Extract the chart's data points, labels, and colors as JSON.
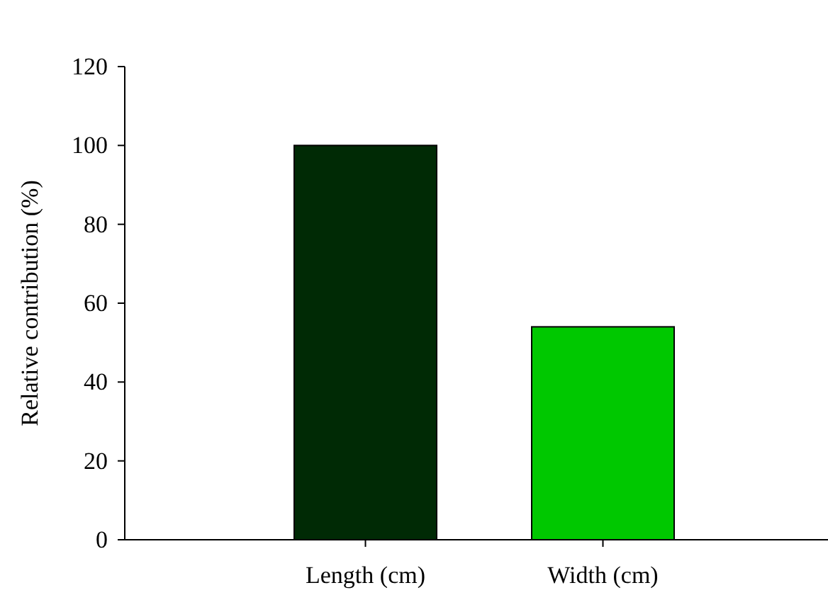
{
  "chart_data": {
    "type": "bar",
    "ylabel": "Relative contribution (%)",
    "categories": [
      "Length (cm)",
      "Width (cm)"
    ],
    "values": [
      100,
      54
    ],
    "colors": [
      "#002a05",
      "#00c800"
    ],
    "ylim": [
      0,
      120
    ],
    "yticks": [
      0,
      20,
      40,
      60,
      80,
      100,
      120
    ],
    "grid": false
  }
}
